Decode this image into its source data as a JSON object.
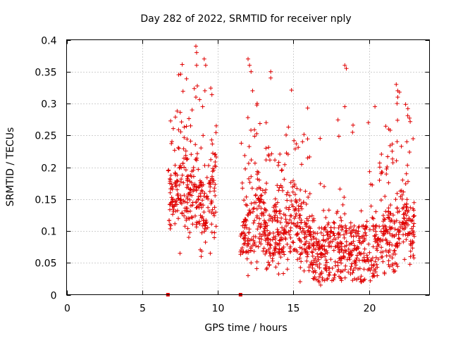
{
  "chart_data": {
    "type": "scatter",
    "title": "Day 282 of 2022, SRMTID for receiver nply",
    "xlabel": "GPS time / hours",
    "ylabel": "SRMTID / TECUs",
    "xlim": [
      0,
      24
    ],
    "ylim": [
      0,
      0.4
    ],
    "xticks": [
      0,
      5,
      10,
      15,
      20
    ],
    "yticks": [
      0,
      0.05,
      0.1,
      0.15,
      0.2,
      0.25,
      0.3,
      0.35,
      0.4
    ],
    "xtick_labels": [
      "0",
      "5",
      "10",
      "15",
      "20"
    ],
    "ytick_labels": [
      "0",
      "0.05",
      "0.1",
      "0.15",
      "0.2",
      "0.25",
      "0.3",
      "0.35",
      "0.4"
    ],
    "grid": true,
    "marker": "+",
    "color": "#e00000",
    "zero_markers_x": [
      6.7,
      11.5
    ],
    "clusters": [
      {
        "x0": 6.7,
        "x1": 9.9,
        "n": 300,
        "low": 0.06,
        "high": 0.39,
        "center": 0.16
      },
      {
        "x0": 11.5,
        "x1": 23.0,
        "n": 1100,
        "low": 0.015,
        "high": 0.37,
        "center": 0.1
      }
    ],
    "peaks": [
      {
        "x": 8.55,
        "y": 0.39
      },
      {
        "x": 8.6,
        "y": 0.38
      },
      {
        "x": 8.6,
        "y": 0.36
      },
      {
        "x": 9.1,
        "y": 0.37
      },
      {
        "x": 9.2,
        "y": 0.36
      },
      {
        "x": 9.15,
        "y": 0.32
      },
      {
        "x": 9.0,
        "y": 0.295
      },
      {
        "x": 8.55,
        "y": 0.31
      },
      {
        "x": 12.0,
        "y": 0.37
      },
      {
        "x": 12.1,
        "y": 0.36
      },
      {
        "x": 12.2,
        "y": 0.35
      },
      {
        "x": 13.5,
        "y": 0.35
      },
      {
        "x": 13.5,
        "y": 0.34
      },
      {
        "x": 18.4,
        "y": 0.36
      },
      {
        "x": 18.5,
        "y": 0.355
      },
      {
        "x": 18.4,
        "y": 0.295
      },
      {
        "x": 21.8,
        "y": 0.33
      },
      {
        "x": 21.9,
        "y": 0.32
      },
      {
        "x": 21.9,
        "y": 0.31
      },
      {
        "x": 21.85,
        "y": 0.3
      },
      {
        "x": 12.3,
        "y": 0.32
      },
      {
        "x": 12.6,
        "y": 0.3
      },
      {
        "x": 9.9,
        "y": 0.265
      },
      {
        "x": 8.2,
        "y": 0.265
      },
      {
        "x": 8.3,
        "y": 0.29
      },
      {
        "x": 13.2,
        "y": 0.27
      },
      {
        "x": 21.3,
        "y": 0.26
      },
      {
        "x": 22.5,
        "y": 0.24
      },
      {
        "x": 15.6,
        "y": 0.24
      },
      {
        "x": 16.7,
        "y": 0.02
      },
      {
        "x": 16.8,
        "y": 0.015
      },
      {
        "x": 12.2,
        "y": 0.05
      },
      {
        "x": 12.0,
        "y": 0.03
      },
      {
        "x": 14.6,
        "y": 0.04
      },
      {
        "x": 19.5,
        "y": 0.02
      },
      {
        "x": 20.3,
        "y": 0.03
      },
      {
        "x": 7.5,
        "y": 0.065
      },
      {
        "x": 8.9,
        "y": 0.06
      },
      {
        "x": 9.5,
        "y": 0.065
      },
      {
        "x": 6.85,
        "y": 0.16
      },
      {
        "x": 7.0,
        "y": 0.17
      },
      {
        "x": 22.9,
        "y": 0.1
      }
    ]
  }
}
